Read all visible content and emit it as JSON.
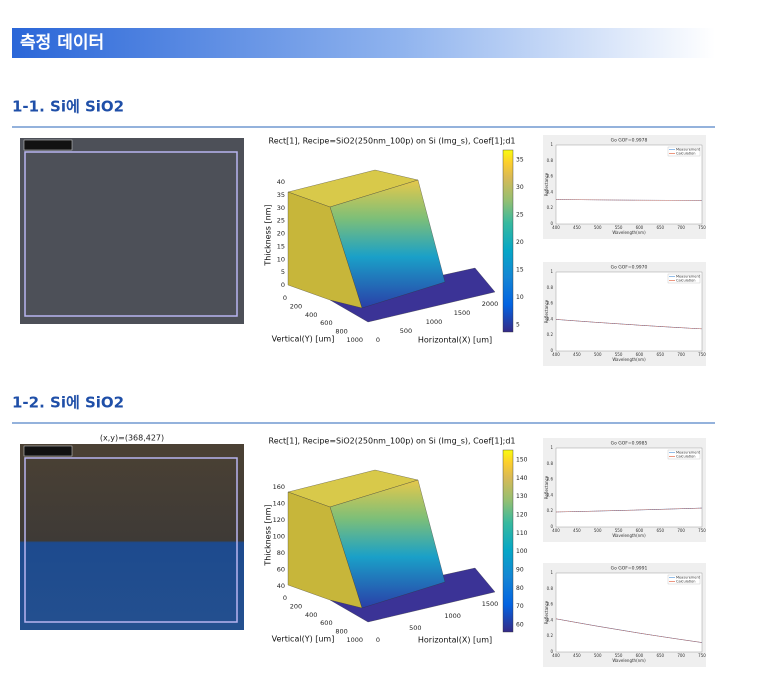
{
  "header": {
    "title": "측정 데이터"
  },
  "sections": [
    {
      "title": "1-1. Si에 SiO2",
      "plot": {
        "title": "Rect[1], Recipe=SiO2(250nm_100p) on Si (Img_s), Coef[1];d1",
        "zlabel": "Thickness [nm]",
        "ylabel": "Vertical(Y) [um]",
        "xlabel": "Horizontal(X) [um]",
        "zticks": [
          0,
          5,
          10,
          15,
          20,
          25,
          30,
          35,
          40
        ],
        "yticks": [
          0,
          200,
          400,
          600,
          800,
          1000
        ],
        "xticks": [
          0,
          500,
          1000,
          1500,
          2000
        ],
        "colorbar_ticks": [
          5,
          10,
          15,
          20,
          25,
          30,
          35
        ]
      },
      "reflectance": [
        {
          "title": "Go GOF=0.9978",
          "legend": [
            "Measurement",
            "Calculation"
          ],
          "xlabel": "Wavelength(nm)",
          "ylabel": "Reflectance",
          "xticks": [
            400,
            450,
            500,
            550,
            600,
            650,
            700,
            750
          ],
          "yticks": [
            0,
            0.2,
            0.4,
            0.6,
            0.8,
            1
          ]
        },
        {
          "title": "Go GOF=0.9970",
          "legend": [
            "Measurement",
            "Calculation"
          ],
          "xlabel": "Wavelength(nm)",
          "ylabel": "Reflectance",
          "xticks": [
            400,
            450,
            500,
            550,
            600,
            650,
            700,
            750
          ],
          "yticks": [
            0,
            0.2,
            0.4,
            0.6,
            0.8,
            1
          ]
        }
      ]
    },
    {
      "title": "1-2. Si에 SiO2",
      "image_caption": "(x,y)=(368,427)",
      "plot": {
        "title": "Rect[1], Recipe=SiO2(250nm_100p) on Si (Img_s), Coef[1];d1",
        "zlabel": "Thickness [nm]",
        "ylabel": "Vertical(Y) [um]",
        "xlabel": "Horizontal(X) [um]",
        "zticks": [
          40,
          60,
          80,
          100,
          120,
          140,
          160
        ],
        "yticks": [
          0,
          200,
          400,
          600,
          800,
          1000
        ],
        "xticks": [
          0,
          500,
          1000,
          1500
        ],
        "colorbar_ticks": [
          60,
          70,
          80,
          90,
          100,
          110,
          120,
          130,
          140,
          150
        ]
      },
      "reflectance": [
        {
          "title": "Go GOF=0.9985",
          "legend": [
            "Measurement",
            "Calculation"
          ],
          "xlabel": "Wavelength(nm)",
          "ylabel": "Reflectance",
          "xticks": [
            400,
            450,
            500,
            550,
            600,
            650,
            700,
            750
          ],
          "yticks": [
            0,
            0.2,
            0.4,
            0.6,
            0.8,
            1
          ]
        },
        {
          "title": "Go GOF=0.9991",
          "legend": [
            "Measurement",
            "Calculation"
          ],
          "xlabel": "Wavelength(nm)",
          "ylabel": "Reflectance",
          "xticks": [
            400,
            450,
            500,
            550,
            600,
            650,
            700,
            750
          ],
          "yticks": [
            0,
            0.2,
            0.4,
            0.6,
            0.8,
            1
          ]
        }
      ]
    }
  ]
}
